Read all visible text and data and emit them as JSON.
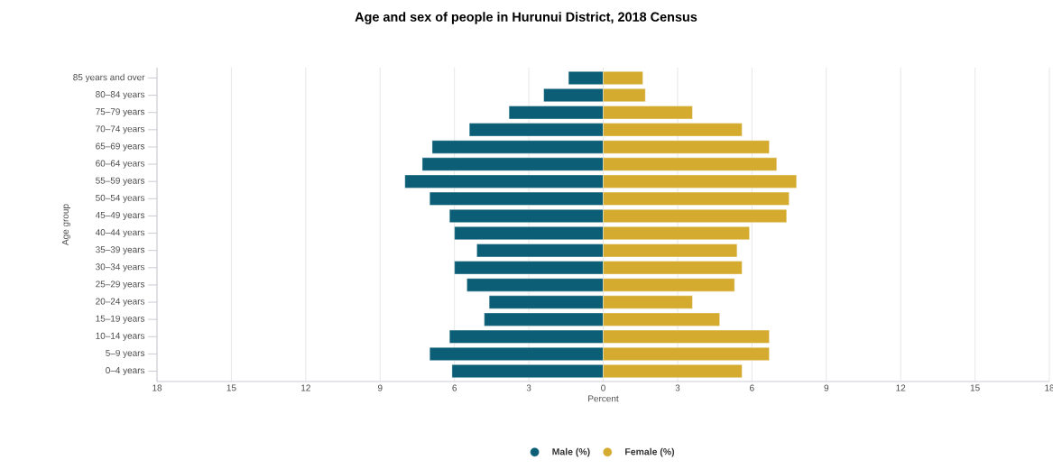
{
  "chart_data": {
    "type": "bar",
    "orientation": "horizontal",
    "title": "Age and sex of people in Hurunui District, 2018 Census",
    "xlabel": "Percent",
    "ylabel": "Age group",
    "categories": [
      "85 years and over",
      "80–84 years",
      "75–79 years",
      "70–74 years",
      "65–69 years",
      "60–64 years",
      "55–59 years",
      "50–54 years",
      "45–49 years",
      "40–44 years",
      "35–39 years",
      "30–34 years",
      "25–29 years",
      "20–24 years",
      "15–19 years",
      "10–14 years",
      "5–9 years",
      "0–4 years"
    ],
    "series": [
      {
        "name": "Male (%)",
        "color": "#0b5e75",
        "values": [
          -1.4,
          -2.4,
          -3.8,
          -5.4,
          -6.9,
          -7.3,
          -8.0,
          -7.0,
          -6.2,
          -6.0,
          -5.1,
          -6.0,
          -5.5,
          -4.6,
          -4.8,
          -6.2,
          -7.0,
          -6.1
        ]
      },
      {
        "name": "Female (%)",
        "color": "#d4ab2f",
        "values": [
          1.6,
          1.7,
          3.6,
          5.6,
          6.7,
          7.0,
          7.8,
          7.5,
          7.4,
          5.9,
          5.4,
          5.6,
          5.3,
          3.6,
          4.7,
          6.7,
          6.7,
          5.6
        ]
      }
    ],
    "xlim": [
      -18,
      18
    ],
    "xticks": [
      {
        "value": -18,
        "label": "18"
      },
      {
        "value": -15,
        "label": "15"
      },
      {
        "value": -12,
        "label": "12"
      },
      {
        "value": -9,
        "label": "9"
      },
      {
        "value": -6,
        "label": "6"
      },
      {
        "value": -3,
        "label": "3"
      },
      0,
      3,
      6,
      9,
      12,
      15,
      18
    ],
    "grid": "x",
    "legend": "bottom",
    "stacked": true
  }
}
